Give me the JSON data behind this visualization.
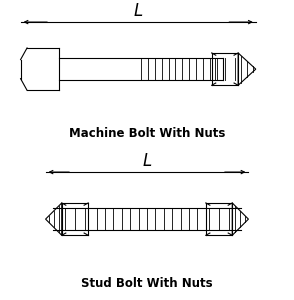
{
  "bg_color": "#ffffff",
  "line_color": "#000000",
  "title1": "Machine Bolt With Nuts",
  "title2": "Stud Bolt With Nuts",
  "title_fontsize": 8.5,
  "fig_width": 2.94,
  "fig_height": 3.0,
  "dpi": 100
}
